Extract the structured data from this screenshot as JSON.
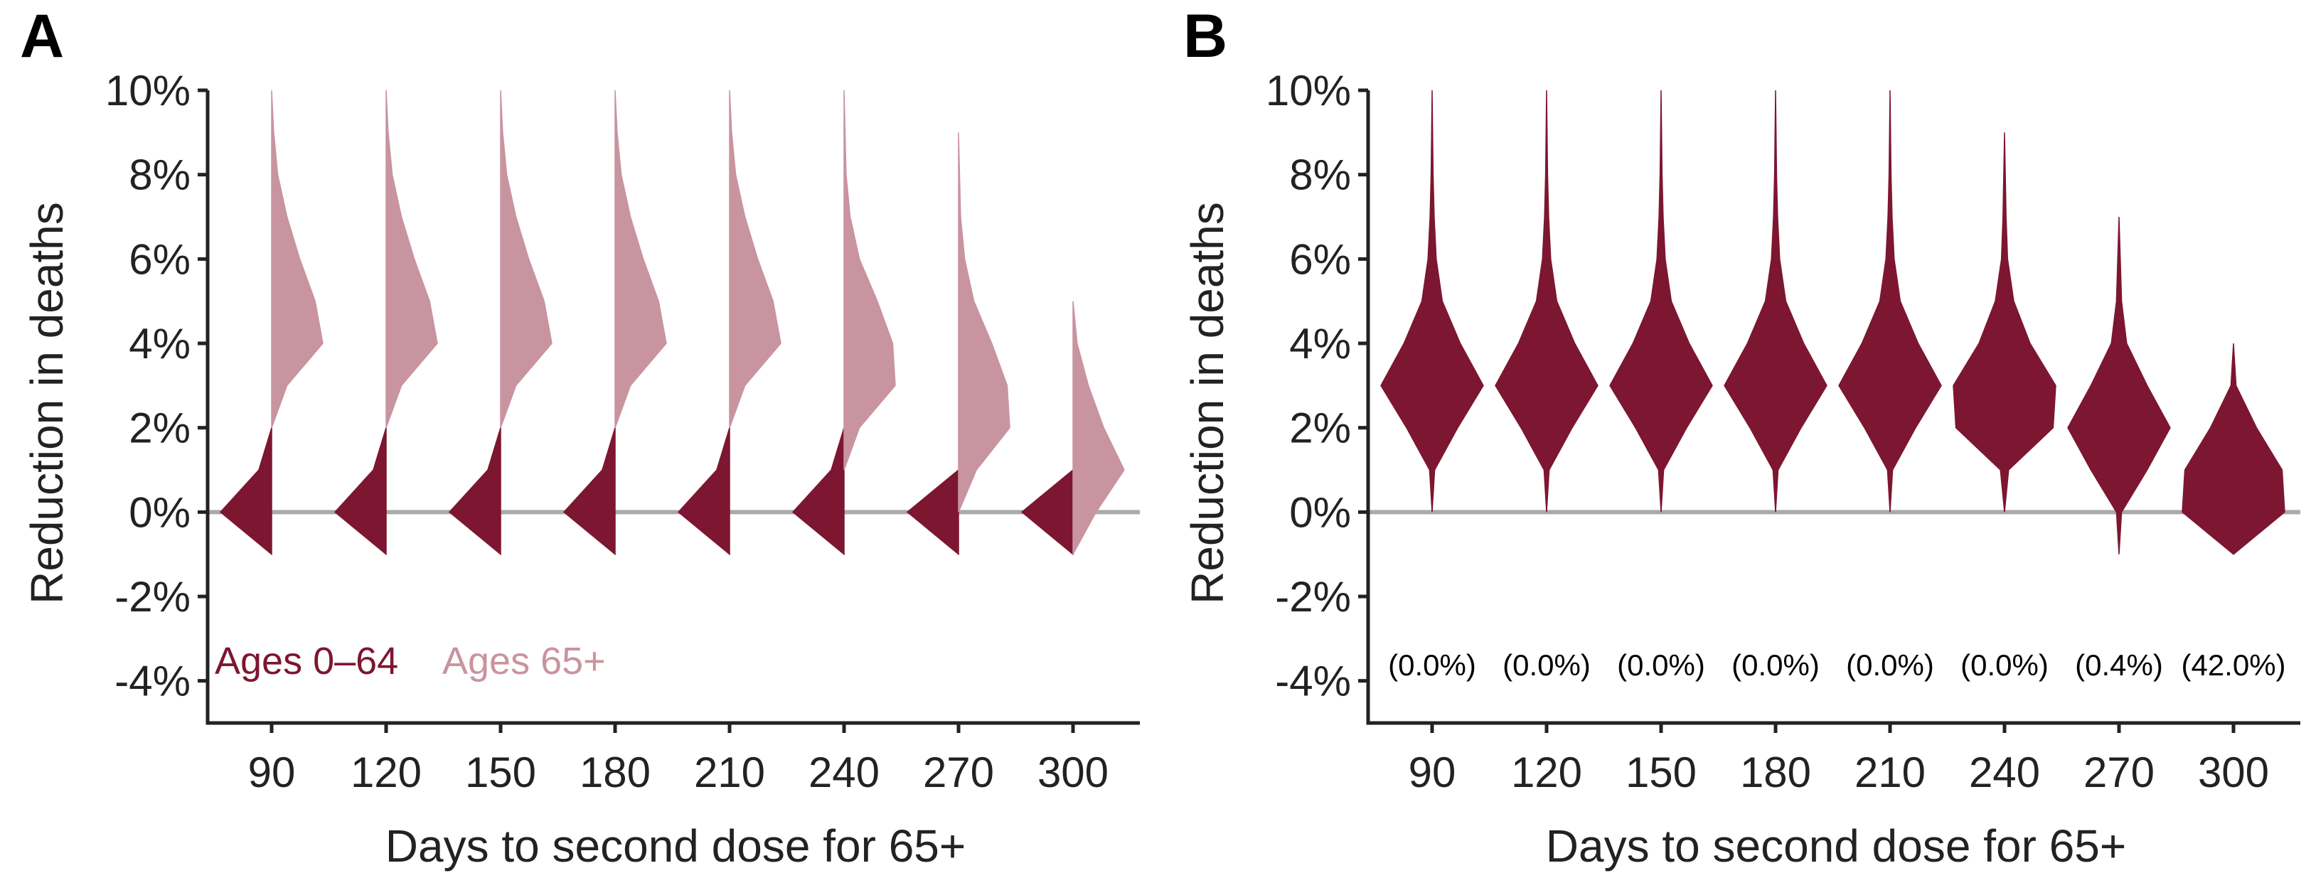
{
  "colors": {
    "young": "#7d1631",
    "old": "#c8949f",
    "zero_line": "#aaaaaa",
    "axis": "#222222"
  },
  "chart_data": [
    {
      "panel": "A",
      "type": "violin",
      "xlabel": "Days to second dose for 65+",
      "ylabel": "Reduction in deaths",
      "ylim": [
        -5,
        10
      ],
      "yticks": [
        -4,
        -2,
        0,
        2,
        4,
        6,
        8,
        10
      ],
      "ytick_labels": [
        "-4%",
        "-2%",
        "0%",
        "2%",
        "4%",
        "6%",
        "8%",
        "10%"
      ],
      "categories": [
        "90",
        "120",
        "150",
        "180",
        "210",
        "240",
        "270",
        "300"
      ],
      "legend": [
        "Ages 0–64",
        "Ages 65+"
      ],
      "legend_position": "bottom-left",
      "zero_line": true,
      "series": [
        {
          "name": "Ages 0–64",
          "color": "#7d1631",
          "side": "left",
          "distributions": [
            {
              "y": [
                -1,
                0,
                1,
                2
              ],
              "w": [
                0,
                1,
                0.25,
                0
              ]
            },
            {
              "y": [
                -1,
                0,
                1,
                2
              ],
              "w": [
                0,
                1,
                0.25,
                0
              ]
            },
            {
              "y": [
                -1,
                0,
                1,
                2
              ],
              "w": [
                0,
                1,
                0.25,
                0
              ]
            },
            {
              "y": [
                -1,
                0,
                1,
                2
              ],
              "w": [
                0,
                1,
                0.25,
                0
              ]
            },
            {
              "y": [
                -1,
                0,
                1,
                2
              ],
              "w": [
                0,
                1,
                0.25,
                0
              ]
            },
            {
              "y": [
                -1,
                0,
                1,
                2
              ],
              "w": [
                0,
                1,
                0.25,
                0
              ]
            },
            {
              "y": [
                -1,
                0,
                1
              ],
              "w": [
                0,
                1,
                0
              ]
            },
            {
              "y": [
                -1,
                0,
                1
              ],
              "w": [
                0,
                1,
                0
              ]
            }
          ]
        },
        {
          "name": "Ages 65+",
          "color": "#c8949f",
          "side": "right",
          "distributions": [
            {
              "y": [
                2,
                3,
                4,
                5,
                6,
                7,
                8,
                9,
                10
              ],
              "w": [
                0,
                0.3,
                1,
                0.85,
                0.55,
                0.3,
                0.12,
                0.04,
                0
              ]
            },
            {
              "y": [
                2,
                3,
                4,
                5,
                6,
                7,
                8,
                9,
                10
              ],
              "w": [
                0,
                0.3,
                1,
                0.85,
                0.55,
                0.3,
                0.12,
                0.04,
                0
              ]
            },
            {
              "y": [
                2,
                3,
                4,
                5,
                6,
                7,
                8,
                9,
                10
              ],
              "w": [
                0,
                0.3,
                1,
                0.85,
                0.55,
                0.3,
                0.12,
                0.04,
                0
              ]
            },
            {
              "y": [
                2,
                3,
                4,
                5,
                6,
                7,
                8,
                9,
                10
              ],
              "w": [
                0,
                0.3,
                1,
                0.85,
                0.55,
                0.3,
                0.12,
                0.04,
                0
              ]
            },
            {
              "y": [
                2,
                3,
                4,
                5,
                6,
                7,
                8,
                9,
                10
              ],
              "w": [
                0,
                0.3,
                1,
                0.85,
                0.55,
                0.3,
                0.12,
                0.04,
                0
              ]
            },
            {
              "y": [
                1,
                2,
                3,
                4,
                5,
                6,
                7,
                8,
                10
              ],
              "w": [
                0,
                0.3,
                1,
                0.95,
                0.65,
                0.3,
                0.12,
                0.04,
                0
              ]
            },
            {
              "y": [
                0,
                1,
                2,
                3,
                4,
                5,
                6,
                7,
                9
              ],
              "w": [
                0,
                0.35,
                1,
                0.95,
                0.65,
                0.3,
                0.12,
                0.04,
                0
              ]
            },
            {
              "y": [
                -1,
                0,
                1,
                2,
                3,
                4,
                5
              ],
              "w": [
                0,
                0.45,
                1,
                0.6,
                0.3,
                0.08,
                0
              ]
            }
          ]
        }
      ]
    },
    {
      "panel": "B",
      "type": "violin",
      "xlabel": "Days to second dose for 65+",
      "ylabel": "Reduction in deaths",
      "ylim": [
        -5,
        10
      ],
      "yticks": [
        -4,
        -2,
        0,
        2,
        4,
        6,
        8,
        10
      ],
      "ytick_labels": [
        "-4%",
        "-2%",
        "0%",
        "2%",
        "4%",
        "6%",
        "8%",
        "10%"
      ],
      "categories": [
        "90",
        "120",
        "150",
        "180",
        "210",
        "240",
        "270",
        "300"
      ],
      "zero_line": true,
      "annotations": [
        "(0.0%)",
        "(0.0%)",
        "(0.0%)",
        "(0.0%)",
        "(0.0%)",
        "(0.0%)",
        "(0.4%)",
        "(42.0%)"
      ],
      "annotation_y": -3.6,
      "series": [
        {
          "color": "#7d1631",
          "side": "both",
          "distributions": [
            {
              "y": [
                0,
                1,
                2,
                3,
                4,
                5,
                6,
                7,
                8,
                10
              ],
              "w": [
                0,
                0.05,
                0.5,
                1,
                0.55,
                0.2,
                0.08,
                0.04,
                0.02,
                0
              ]
            },
            {
              "y": [
                0,
                1,
                2,
                3,
                4,
                5,
                6,
                7,
                8,
                10
              ],
              "w": [
                0,
                0.05,
                0.5,
                1,
                0.55,
                0.2,
                0.08,
                0.04,
                0.02,
                0
              ]
            },
            {
              "y": [
                0,
                1,
                2,
                3,
                4,
                5,
                6,
                7,
                8,
                10
              ],
              "w": [
                0,
                0.05,
                0.5,
                1,
                0.55,
                0.2,
                0.08,
                0.04,
                0.02,
                0
              ]
            },
            {
              "y": [
                0,
                1,
                2,
                3,
                4,
                5,
                6,
                7,
                8,
                10
              ],
              "w": [
                0,
                0.05,
                0.5,
                1,
                0.55,
                0.2,
                0.08,
                0.04,
                0.02,
                0
              ]
            },
            {
              "y": [
                0,
                1,
                2,
                3,
                4,
                5,
                6,
                7,
                8,
                10
              ],
              "w": [
                0,
                0.05,
                0.5,
                1,
                0.55,
                0.2,
                0.08,
                0.04,
                0.02,
                0
              ]
            },
            {
              "y": [
                0,
                1,
                2,
                3,
                4,
                5,
                6,
                7,
                9
              ],
              "w": [
                0,
                0.08,
                0.95,
                1,
                0.5,
                0.18,
                0.06,
                0.03,
                0
              ]
            },
            {
              "y": [
                -1,
                0,
                1,
                2,
                3,
                4,
                5,
                7
              ],
              "w": [
                0,
                0.05,
                0.55,
                1,
                0.55,
                0.15,
                0.05,
                0
              ]
            },
            {
              "y": [
                -1,
                0,
                1,
                2,
                3,
                4
              ],
              "w": [
                0,
                1,
                0.95,
                0.45,
                0.05,
                0
              ]
            }
          ]
        }
      ]
    }
  ]
}
